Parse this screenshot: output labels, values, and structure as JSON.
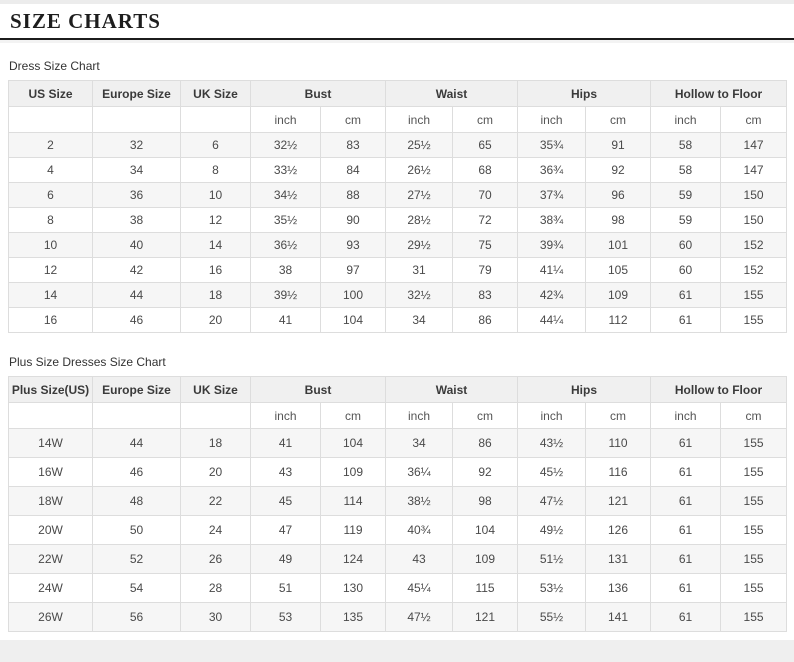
{
  "page": {
    "title": "SIZE CHARTS"
  },
  "colors": {
    "rule": "#1c1c1c",
    "header_bg": "#f0f0f0",
    "alt_row_bg": "#f6f6f6",
    "border": "#dddddd",
    "text": "#4a4a4a",
    "footer_bg": "#efefef"
  },
  "tables": [
    {
      "caption": "Dress Size Chart",
      "single_headers": [
        "US Size",
        "Europe Size",
        "UK Size"
      ],
      "group_headers": [
        "Bust",
        "Waist",
        "Hips",
        "Hollow to Floor"
      ],
      "unit_headers": [
        "inch",
        "cm"
      ],
      "rows": [
        [
          "2",
          "32",
          "6",
          "32½",
          "83",
          "25½",
          "65",
          "35¾",
          "91",
          "58",
          "147"
        ],
        [
          "4",
          "34",
          "8",
          "33½",
          "84",
          "26½",
          "68",
          "36¾",
          "92",
          "58",
          "147"
        ],
        [
          "6",
          "36",
          "10",
          "34½",
          "88",
          "27½",
          "70",
          "37¾",
          "96",
          "59",
          "150"
        ],
        [
          "8",
          "38",
          "12",
          "35½",
          "90",
          "28½",
          "72",
          "38¾",
          "98",
          "59",
          "150"
        ],
        [
          "10",
          "40",
          "14",
          "36½",
          "93",
          "29½",
          "75",
          "39¾",
          "101",
          "60",
          "152"
        ],
        [
          "12",
          "42",
          "16",
          "38",
          "97",
          "31",
          "79",
          "41¼",
          "105",
          "60",
          "152"
        ],
        [
          "14",
          "44",
          "18",
          "39½",
          "100",
          "32½",
          "83",
          "42¾",
          "109",
          "61",
          "155"
        ],
        [
          "16",
          "46",
          "20",
          "41",
          "104",
          "34",
          "86",
          "44¼",
          "112",
          "61",
          "155"
        ]
      ]
    },
    {
      "caption": "Plus Size Dresses Size Chart",
      "single_headers": [
        "Plus Size(US)",
        "Europe Size",
        "UK Size"
      ],
      "group_headers": [
        "Bust",
        "Waist",
        "Hips",
        "Hollow to Floor"
      ],
      "unit_headers": [
        "inch",
        "cm"
      ],
      "rows": [
        [
          "14W",
          "44",
          "18",
          "41",
          "104",
          "34",
          "86",
          "43½",
          "110",
          "61",
          "155"
        ],
        [
          "16W",
          "46",
          "20",
          "43",
          "109",
          "36¼",
          "92",
          "45½",
          "116",
          "61",
          "155"
        ],
        [
          "18W",
          "48",
          "22",
          "45",
          "114",
          "38½",
          "98",
          "47½",
          "121",
          "61",
          "155"
        ],
        [
          "20W",
          "50",
          "24",
          "47",
          "119",
          "40¾",
          "104",
          "49½",
          "126",
          "61",
          "155"
        ],
        [
          "22W",
          "52",
          "26",
          "49",
          "124",
          "43",
          "109",
          "51½",
          "131",
          "61",
          "155"
        ],
        [
          "24W",
          "54",
          "28",
          "51",
          "130",
          "45¼",
          "115",
          "53½",
          "136",
          "61",
          "155"
        ],
        [
          "26W",
          "56",
          "30",
          "53",
          "135",
          "47½",
          "121",
          "55½",
          "141",
          "61",
          "155"
        ]
      ]
    }
  ]
}
